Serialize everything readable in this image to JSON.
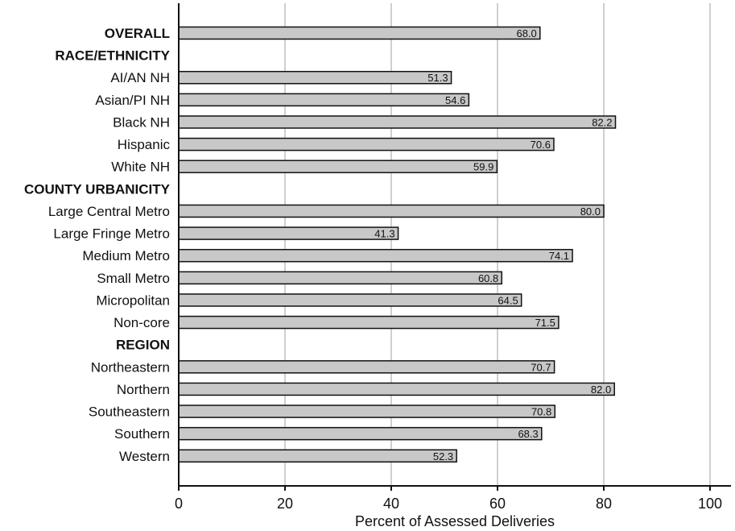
{
  "chart_data": {
    "type": "bar",
    "orientation": "horizontal",
    "xlabel": "Percent of Assessed Deliveries",
    "xlim": [
      0,
      100
    ],
    "xticks": [
      "0",
      "20",
      "40",
      "60",
      "80",
      "100"
    ],
    "grid": "vertical",
    "colors": {
      "bar_fill": "#c8c8c8",
      "bar_stroke": "#111111",
      "grid": "#cfcfcf"
    },
    "rows": [
      {
        "label": "OVERALL",
        "header": true,
        "value": 68.0,
        "value_label": "68.0"
      },
      {
        "label": "RACE/ETHNICITY",
        "header": true,
        "value": null,
        "value_label": ""
      },
      {
        "label": "AI/AN NH",
        "header": false,
        "value": 51.3,
        "value_label": "51.3"
      },
      {
        "label": "Asian/PI NH",
        "header": false,
        "value": 54.6,
        "value_label": "54.6"
      },
      {
        "label": "Black NH",
        "header": false,
        "value": 82.2,
        "value_label": "82.2"
      },
      {
        "label": "Hispanic",
        "header": false,
        "value": 70.6,
        "value_label": "70.6"
      },
      {
        "label": "White NH",
        "header": false,
        "value": 59.9,
        "value_label": "59.9"
      },
      {
        "label": "COUNTY URBANICITY",
        "header": true,
        "value": null,
        "value_label": ""
      },
      {
        "label": "Large Central Metro",
        "header": false,
        "value": 80.0,
        "value_label": "80.0"
      },
      {
        "label": "Large Fringe Metro",
        "header": false,
        "value": 41.3,
        "value_label": "41.3"
      },
      {
        "label": "Medium Metro",
        "header": false,
        "value": 74.1,
        "value_label": "74.1"
      },
      {
        "label": "Small Metro",
        "header": false,
        "value": 60.8,
        "value_label": "60.8"
      },
      {
        "label": "Micropolitan",
        "header": false,
        "value": 64.5,
        "value_label": "64.5"
      },
      {
        "label": "Non-core",
        "header": false,
        "value": 71.5,
        "value_label": "71.5"
      },
      {
        "label": "REGION",
        "header": true,
        "value": null,
        "value_label": ""
      },
      {
        "label": "Northeastern",
        "header": false,
        "value": 70.7,
        "value_label": "70.7"
      },
      {
        "label": "Northern",
        "header": false,
        "value": 82.0,
        "value_label": "82.0"
      },
      {
        "label": "Southeastern",
        "header": false,
        "value": 70.8,
        "value_label": "70.8"
      },
      {
        "label": "Southern",
        "header": false,
        "value": 68.3,
        "value_label": "68.3"
      },
      {
        "label": "Western",
        "header": false,
        "value": 52.3,
        "value_label": "52.3"
      }
    ]
  }
}
